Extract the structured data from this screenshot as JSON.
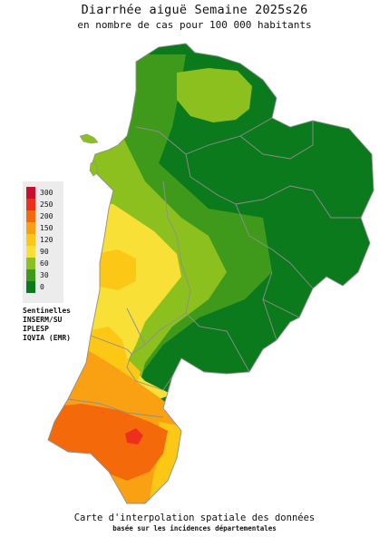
{
  "header": {
    "title": "Diarrhée aiguë Semaine 2025s26",
    "subtitle": "en nombre de cas pour 100 000 habitants"
  },
  "legend": {
    "items": [
      {
        "label": "300",
        "color": "#c8102e"
      },
      {
        "label": "250",
        "color": "#ee2f1c"
      },
      {
        "label": "200",
        "color": "#f46a0a"
      },
      {
        "label": "150",
        "color": "#f9a113"
      },
      {
        "label": "120",
        "color": "#fcc715"
      },
      {
        "label": "90",
        "color": "#f8e036"
      },
      {
        "label": "60",
        "color": "#8cc01f"
      },
      {
        "label": "30",
        "color": "#3f9a1b"
      },
      {
        "label": "0",
        "color": "#0b7a1c"
      }
    ]
  },
  "sources": [
    "Sentinelles",
    "INSERM/SU",
    "IPLESP",
    "IQVIA (EMR)"
  ],
  "footer": {
    "line1": "Carte d'interpolation spatiale des données",
    "line2": "basée sur les incidences départementales"
  },
  "map_colors": {
    "sea": "#ffffff",
    "border": "#8f8f8f",
    "dark_green": "#0b7a1c",
    "mid_green": "#3f9a1b",
    "light_green": "#8cc01f",
    "yellow": "#f8e036",
    "amber": "#fcc715",
    "orange_light": "#f9a113",
    "orange": "#f46a0a",
    "red": "#ee2f1c"
  }
}
